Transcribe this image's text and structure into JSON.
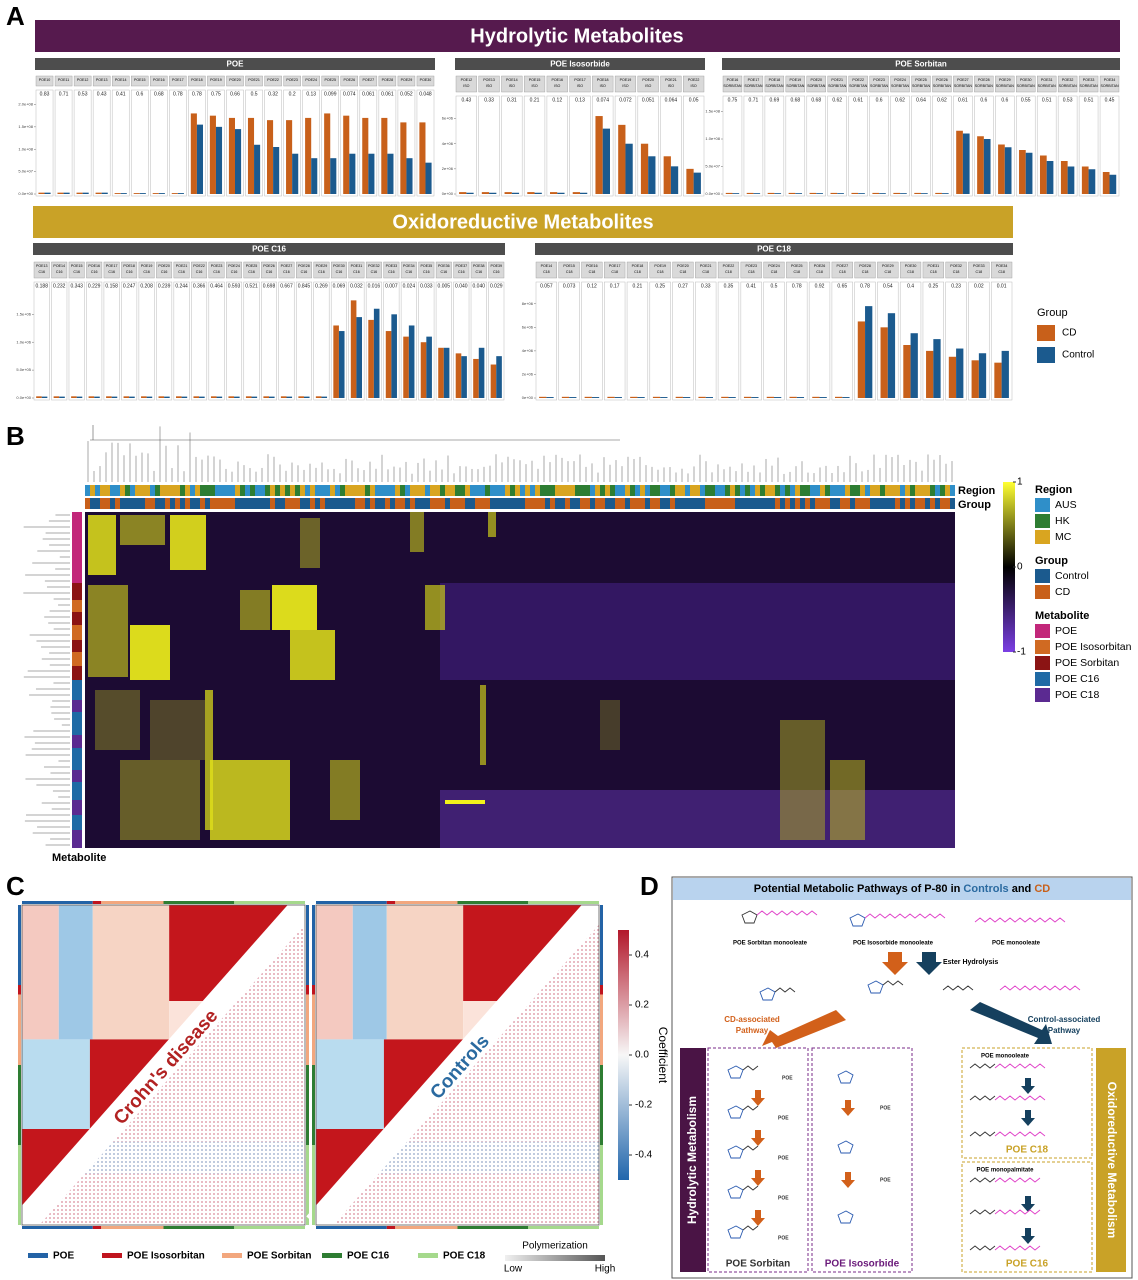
{
  "panel_labels": [
    "A",
    "B",
    "C",
    "D"
  ],
  "panel_a": {
    "hydrolytic_title": "Hydrolytic Metabolites",
    "oxidoreductive_title": "Oxidoreductive Metabolites",
    "group_legend": {
      "title": "Group",
      "items": [
        {
          "name": "CD",
          "color": "#c8601a"
        },
        {
          "name": "Control",
          "color": "#1b5a8e"
        }
      ]
    },
    "charts": [
      {
        "type": "bar",
        "title": "POE",
        "categories": [
          [
            "POE10"
          ],
          [
            "POE11"
          ],
          [
            "POE12"
          ],
          [
            "POE13"
          ],
          [
            "POE14"
          ],
          [
            "POE15"
          ],
          [
            "POE16"
          ],
          [
            "POE17"
          ],
          [
            "POE18"
          ],
          [
            "POE19"
          ],
          [
            "POE20"
          ],
          [
            "POE21"
          ],
          [
            "POE22"
          ],
          [
            "POE23"
          ],
          [
            "POE24"
          ],
          [
            "POE25"
          ],
          [
            "POE26"
          ],
          [
            "POE27"
          ],
          [
            "POE28"
          ],
          [
            "POE29"
          ],
          [
            "POE30"
          ]
        ],
        "p_values": [
          "0.83",
          "0.71",
          "0.53",
          "0.43",
          "0.41",
          "0.6",
          "0.68",
          "0.78",
          "0.78",
          "0.75",
          "0.66",
          "0.5",
          "0.32",
          "0.2",
          "0.13",
          "0.099",
          "0.074",
          "0.061",
          "0.061",
          "0.052",
          "0.048"
        ],
        "ylim": [
          0,
          210000000
        ],
        "yticks": [
          {
            "value": 0,
            "label": "0.0e+00"
          },
          {
            "value": 50000000,
            "label": "5.0e+07"
          },
          {
            "value": 100000000,
            "label": "1.0e+08"
          },
          {
            "value": 150000000,
            "label": "1.5e+08"
          },
          {
            "value": 200000000,
            "label": "2.0e+08"
          }
        ],
        "series": [
          {
            "values": [
              3000000,
              3000000,
              3000000,
              3000000,
              2000000,
              2000000,
              2000000,
              2000000,
              180000000,
              175000000,
              170000000,
              170000000,
              165000000,
              165000000,
              170000000,
              180000000,
              175000000,
              170000000,
              170000000,
              160000000,
              160000000
            ]
          },
          {
            "values": [
              3000000,
              3000000,
              3000000,
              3000000,
              2000000,
              2000000,
              2000000,
              2000000,
              155000000,
              150000000,
              145000000,
              110000000,
              105000000,
              90000000,
              80000000,
              80000000,
              90000000,
              90000000,
              90000000,
              80000000,
              70000000
            ]
          }
        ]
      },
      {
        "type": "bar",
        "title": "POE Isosorbide",
        "categories": [
          [
            "POE12",
            "ISO"
          ],
          [
            "POE13",
            "ISO"
          ],
          [
            "POE14",
            "ISO"
          ],
          [
            "POE15",
            "ISO"
          ],
          [
            "POE16",
            "ISO"
          ],
          [
            "POE17",
            "ISO"
          ],
          [
            "POE18",
            "ISO"
          ],
          [
            "POE19",
            "ISO"
          ],
          [
            "POE20",
            "ISO"
          ],
          [
            "POE21",
            "ISO"
          ],
          [
            "POE22",
            "ISO"
          ]
        ],
        "p_values": [
          "0.43",
          "0.33",
          "0.31",
          "0.21",
          "0.12",
          "0.13",
          "0.074",
          "0.072",
          "0.051",
          "0.064",
          "0.05"
        ],
        "ylim": [
          0,
          7000000
        ],
        "yticks": [
          {
            "value": 0,
            "label": "0e+00"
          },
          {
            "value": 2000000,
            "label": "2e+06"
          },
          {
            "value": 4000000,
            "label": "4e+06"
          },
          {
            "value": 6000000,
            "label": "6e+06"
          }
        ],
        "series": [
          {
            "values": [
              150000,
              150000,
              150000,
              150000,
              150000,
              150000,
              6200000,
              5500000,
              4000000,
              3000000,
              2000000
            ]
          },
          {
            "values": [
              100000,
              100000,
              100000,
              100000,
              100000,
              100000,
              5200000,
              4000000,
              3000000,
              2200000,
              1700000
            ]
          }
        ]
      },
      {
        "type": "bar",
        "title": "POE Sorbitan",
        "categories": [
          [
            "POE16",
            "SORBITAN"
          ],
          [
            "POE17",
            "SORBITAN"
          ],
          [
            "POE18",
            "SORBITAN"
          ],
          [
            "POE19",
            "SORBITAN"
          ],
          [
            "POE20",
            "SORBITAN"
          ],
          [
            "POE21",
            "SORBITAN"
          ],
          [
            "POE22",
            "SORBITAN"
          ],
          [
            "POE23",
            "SORBITAN"
          ],
          [
            "POE24",
            "SORBITAN"
          ],
          [
            "POE25",
            "SORBITAN"
          ],
          [
            "POE26",
            "SORBITAN"
          ],
          [
            "POE27",
            "SORBITAN"
          ],
          [
            "POE28",
            "SORBITAN"
          ],
          [
            "POE29",
            "SORBITAN"
          ],
          [
            "POE30",
            "SORBITAN"
          ],
          [
            "POE31",
            "SORBITAN"
          ],
          [
            "POE32",
            "SORBITAN"
          ],
          [
            "POE33",
            "SORBITAN"
          ],
          [
            "POE34",
            "SORBITAN"
          ]
        ],
        "p_values": [
          "0.75",
          "0.71",
          "0.69",
          "0.68",
          "0.68",
          "0.62",
          "0.61",
          "0.6",
          "0.62",
          "0.64",
          "0.62",
          "0.61",
          "0.6",
          "0.6",
          "0.55",
          "0.51",
          "0.53",
          "0.51",
          "0.45"
        ],
        "ylim": [
          0,
          160000000
        ],
        "yticks": [
          {
            "value": 0,
            "label": "0.0e+00"
          },
          {
            "value": 50000000,
            "label": "5.0e+07"
          },
          {
            "value": 100000000,
            "label": "1.0e+08"
          },
          {
            "value": 150000000,
            "label": "1.5e+08"
          }
        ],
        "series": [
          {
            "values": [
              2000000,
              2000000,
              2000000,
              2000000,
              2000000,
              2000000,
              2000000,
              2000000,
              2000000,
              2000000,
              2000000,
              115000000,
              105000000,
              90000000,
              80000000,
              70000000,
              60000000,
              50000000,
              40000000
            ]
          },
          {
            "values": [
              1500000,
              1500000,
              1500000,
              1500000,
              1500000,
              1500000,
              1500000,
              1500000,
              1500000,
              1500000,
              1500000,
              110000000,
              100000000,
              85000000,
              75000000,
              60000000,
              50000000,
              45000000,
              35000000
            ]
          }
        ]
      },
      {
        "type": "bar",
        "title": "POE C16",
        "categories": [
          [
            "POE13",
            "C16"
          ],
          [
            "POE14",
            "C16"
          ],
          [
            "POE15",
            "C16"
          ],
          [
            "POE16",
            "C16"
          ],
          [
            "POE17",
            "C16"
          ],
          [
            "POE18",
            "C16"
          ],
          [
            "POE19",
            "C16"
          ],
          [
            "POE20",
            "C16"
          ],
          [
            "POE21",
            "C16"
          ],
          [
            "POE22",
            "C16"
          ],
          [
            "POE23",
            "C16"
          ],
          [
            "POE24",
            "C16"
          ],
          [
            "POE25",
            "C16"
          ],
          [
            "POE26",
            "C16"
          ],
          [
            "POE27",
            "C16"
          ],
          [
            "POE28",
            "C16"
          ],
          [
            "POE29",
            "C16"
          ],
          [
            "POE30",
            "C16"
          ],
          [
            "POE31",
            "C16"
          ],
          [
            "POE32",
            "C16"
          ],
          [
            "POE33",
            "C16"
          ],
          [
            "POE34",
            "C16"
          ],
          [
            "POE35",
            "C16"
          ],
          [
            "POE36",
            "C16"
          ],
          [
            "POE37",
            "C16"
          ],
          [
            "POE38",
            "C16"
          ],
          [
            "POE39",
            "C16"
          ]
        ],
        "p_values": [
          "0.188",
          "0.232",
          "0.343",
          "0.229",
          "0.158",
          "0.247",
          "0.208",
          "0.239",
          "0.244",
          "0.366",
          "0.464",
          "0.593",
          "0.521",
          "0.698",
          "0.667",
          "0.845",
          "0.269",
          "0.069",
          "0.032",
          "0.016",
          "0.007",
          "0.024",
          "0.033",
          "0.005",
          "0.040",
          "0.040",
          "0.029"
        ],
        "ylim": [
          0,
          1900000
        ],
        "yticks": [
          {
            "value": 0,
            "label": "0.0e+00"
          },
          {
            "value": 500000,
            "label": "5.0e+05"
          },
          {
            "value": 1000000,
            "label": "1.0e+06"
          },
          {
            "value": 1500000,
            "label": "1.5e+06"
          }
        ],
        "series": [
          {
            "values": [
              30000,
              30000,
              30000,
              30000,
              30000,
              30000,
              30000,
              30000,
              30000,
              30000,
              30000,
              30000,
              30000,
              30000,
              30000,
              30000,
              30000,
              1300000,
              1750000,
              1400000,
              1200000,
              1100000,
              1000000,
              900000,
              800000,
              700000,
              600000
            ]
          },
          {
            "values": [
              25000,
              25000,
              25000,
              25000,
              25000,
              25000,
              25000,
              25000,
              25000,
              25000,
              25000,
              25000,
              25000,
              25000,
              25000,
              25000,
              25000,
              1200000,
              1450000,
              1600000,
              1500000,
              1300000,
              1100000,
              900000,
              750000,
              900000,
              750000
            ]
          }
        ]
      },
      {
        "type": "bar",
        "title": "POE C18",
        "categories": [
          [
            "POE14",
            "C18"
          ],
          [
            "POE15",
            "C18"
          ],
          [
            "POE16",
            "C18"
          ],
          [
            "POE17",
            "C18"
          ],
          [
            "POE18",
            "C18"
          ],
          [
            "POE19",
            "C18"
          ],
          [
            "POE20",
            "C18"
          ],
          [
            "POE21",
            "C18"
          ],
          [
            "POE22",
            "C18"
          ],
          [
            "POE23",
            "C18"
          ],
          [
            "POE24",
            "C18"
          ],
          [
            "POE25",
            "C18"
          ],
          [
            "POE26",
            "C18"
          ],
          [
            "POE27",
            "C18"
          ],
          [
            "POE28",
            "C18"
          ],
          [
            "POE29",
            "C18"
          ],
          [
            "POE30",
            "C18"
          ],
          [
            "POE31",
            "C18"
          ],
          [
            "POE32",
            "C18"
          ],
          [
            "POE33",
            "C18"
          ],
          [
            "POE34",
            "C18"
          ]
        ],
        "p_values": [
          "0.057",
          "0.073",
          "0.12",
          "0.17",
          "0.21",
          "0.25",
          "0.27",
          "0.33",
          "0.35",
          "0.41",
          "0.5",
          "0.78",
          "0.92",
          "0.65",
          "0.78",
          "0.54",
          "0.4",
          "0.25",
          "0.23",
          "0.02",
          "0.01"
        ],
        "ylim": [
          0,
          9000000
        ],
        "yticks": [
          {
            "value": 0,
            "label": "0e+00"
          },
          {
            "value": 2000000,
            "label": "2e+06"
          },
          {
            "value": 4000000,
            "label": "4e+06"
          },
          {
            "value": 6000000,
            "label": "6e+06"
          },
          {
            "value": 8000000,
            "label": "8e+06"
          }
        ],
        "series": [
          {
            "values": [
              100000,
              100000,
              100000,
              100000,
              100000,
              100000,
              100000,
              100000,
              100000,
              100000,
              100000,
              100000,
              100000,
              100000,
              6500000,
              6000000,
              4500000,
              4000000,
              3500000,
              3200000,
              3000000
            ]
          },
          {
            "values": [
              80000,
              80000,
              80000,
              80000,
              80000,
              80000,
              80000,
              80000,
              80000,
              80000,
              80000,
              80000,
              80000,
              80000,
              7800000,
              7200000,
              5500000,
              5000000,
              4200000,
              3800000,
              4000000
            ]
          }
        ]
      }
    ]
  },
  "panel_b": {
    "region_label": "Region",
    "group_label": "Group",
    "metabolite_label": "Metabolite",
    "colorbar": {
      "ylim": [
        -1,
        1
      ],
      "ticks": [
        1,
        0,
        -1
      ]
    },
    "legend": [
      {
        "title": "Region",
        "items": [
          {
            "name": "AUS",
            "color": "#2f8fc9"
          },
          {
            "name": "HK",
            "color": "#2e7d32"
          },
          {
            "name": "MC",
            "color": "#d9a520"
          }
        ]
      },
      {
        "title": "Group",
        "items": [
          {
            "name": "Control",
            "color": "#1b5a8e"
          },
          {
            "name": "CD",
            "color": "#c8601a"
          }
        ]
      },
      {
        "title": "Metabolite",
        "items": [
          {
            "name": "POE",
            "color": "#c2277a"
          },
          {
            "name": "POE Isosorbitan",
            "color": "#d06a22"
          },
          {
            "name": "POE Sorbitan",
            "color": "#8b1414"
          },
          {
            "name": "POE C16",
            "color": "#1f6aa5"
          },
          {
            "name": "POE C18",
            "color": "#5b2a91"
          }
        ]
      }
    ]
  },
  "panel_c": {
    "matrices": [
      {
        "label": "Crohn's disease",
        "color": "#b22222"
      },
      {
        "label": "Controls",
        "color": "#2a6aa0"
      }
    ],
    "colorbar": {
      "title": "Coefficient",
      "ylim": [
        -0.5,
        0.5
      ],
      "ticks": [
        0.4,
        0.2,
        {
          "value": 0,
          "label": "0.0"
        },
        -0.2,
        -0.4
      ]
    },
    "legend": [
      {
        "name": "POE",
        "color": "#2363a6"
      },
      {
        "name": "POE Isosorbitan",
        "color": "#c0141e"
      },
      {
        "name": "POE Sorbitan",
        "color": "#f2a77e"
      },
      {
        "name": "POE C16",
        "color": "#2e7d32"
      },
      {
        "name": "POE C18",
        "color": "#a5d98c"
      }
    ],
    "polymerization": {
      "title": "Polymerization",
      "low": "Low",
      "high": "High"
    }
  },
  "panel_d": {
    "title_parts": [
      "Potential Metabolic Pathways of P-80 in ",
      "Controls",
      " and ",
      "CD"
    ],
    "substrates": [
      "POE Sorbitan monooleate",
      "POE Isosorbide monooleate",
      "POE monooleate"
    ],
    "ester_hydrolysis": "Ester Hydrolysis",
    "cd_pathway": [
      "CD-associated",
      "Pathway"
    ],
    "control_pathway": [
      "Control-associated",
      "Pathway"
    ],
    "hydrolytic": "Hydrolytic Metabolism",
    "oxidoreductive": "Oxidoreductive Metabolism",
    "sorbitan_box": "POE Sorbitan",
    "isosorbide_box": "POE Isosorbide",
    "c18_box": "POE C18",
    "c16_box": "POE C16",
    "c18_start": "POE monooleate",
    "c16_start": "POE monopalmitate",
    "poe_tag": "POE"
  }
}
